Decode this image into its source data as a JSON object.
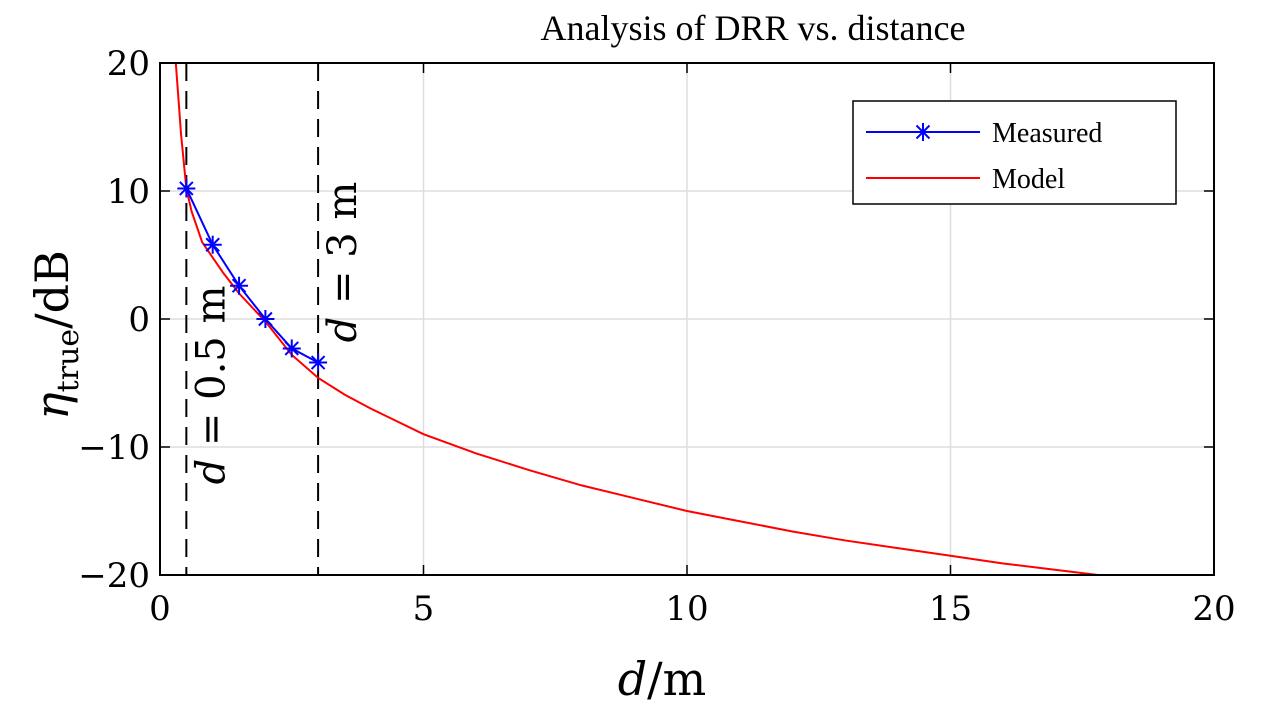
{
  "chart_data": {
    "type": "line",
    "title": "Analysis of DRR vs. distance",
    "xlabel": "d/m",
    "ylabel": "η_true/dB",
    "xlim": [
      0,
      20
    ],
    "ylim": [
      -20,
      20
    ],
    "xticks": [
      0,
      5,
      10,
      15,
      20
    ],
    "yticks": [
      -20,
      -10,
      0,
      10,
      20
    ],
    "xtick_labels": [
      "0",
      "5",
      "10",
      "15",
      "20"
    ],
    "ytick_labels": [
      "−20",
      "−10",
      "0",
      "10",
      "20"
    ],
    "grid": true,
    "legend_position": "top-right",
    "series": [
      {
        "name": "Measured",
        "color": "#0000ff",
        "marker": "asterisk",
        "x": [
          0.5,
          1.0,
          1.5,
          2.0,
          2.5,
          3.0
        ],
        "y": [
          10.2,
          5.8,
          2.6,
          0.0,
          -2.3,
          -3.4
        ]
      },
      {
        "name": "Model",
        "color": "#ff0000",
        "marker": "none",
        "x": [
          0.3,
          0.4,
          0.5,
          0.6,
          0.8,
          1.0,
          1.2,
          1.5,
          2.0,
          2.5,
          3.0,
          3.5,
          4.0,
          5.0,
          6.0,
          7.0,
          8.0,
          9.0,
          10.0,
          11.0,
          12.0,
          13.0,
          14.0,
          15.0,
          16.0,
          17.0,
          17.8
        ],
        "y": [
          20.0,
          14.4,
          10.2,
          8.4,
          6.0,
          4.8,
          3.6,
          2.0,
          -0.2,
          -2.8,
          -4.6,
          -5.9,
          -7.0,
          -9.0,
          -10.5,
          -11.8,
          -13.0,
          -14.0,
          -15.0,
          -15.8,
          -16.6,
          -17.3,
          -17.9,
          -18.5,
          -19.1,
          -19.6,
          -20.0
        ]
      }
    ],
    "vlines": [
      {
        "x": 0.5,
        "label": "d = 0.5 m"
      },
      {
        "x": 3.0,
        "label": "d = 3 m"
      }
    ]
  },
  "colors": {
    "measured": "#0000ff",
    "model": "#ff0000",
    "grid": "#dedede",
    "axis": "#000000"
  }
}
